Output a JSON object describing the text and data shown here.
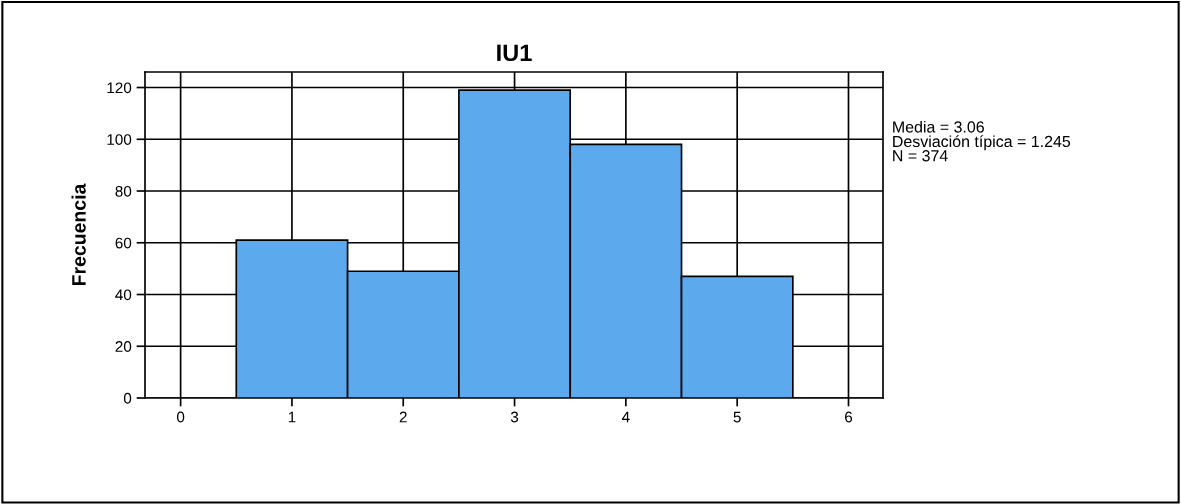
{
  "chart_data": {
    "type": "histogram",
    "title": "IU1",
    "ylabel": "Frecuencia",
    "bins": [
      0.5,
      1.5,
      2.5,
      3.5,
      4.5,
      5.5
    ],
    "values": [
      61,
      49,
      119,
      98,
      47
    ],
    "color": "#5ca9ed",
    "xlim": [
      -0.32,
      6.31
    ],
    "xticks": [
      0,
      1,
      2,
      3,
      4,
      5,
      6
    ],
    "ylim": [
      0,
      126
    ],
    "yticks": [
      0,
      20,
      40,
      60,
      80,
      100,
      120
    ],
    "grid": true,
    "annotations": [
      "Media = 3.06\nDesviación típica = 1.245\nN = 374"
    ]
  }
}
